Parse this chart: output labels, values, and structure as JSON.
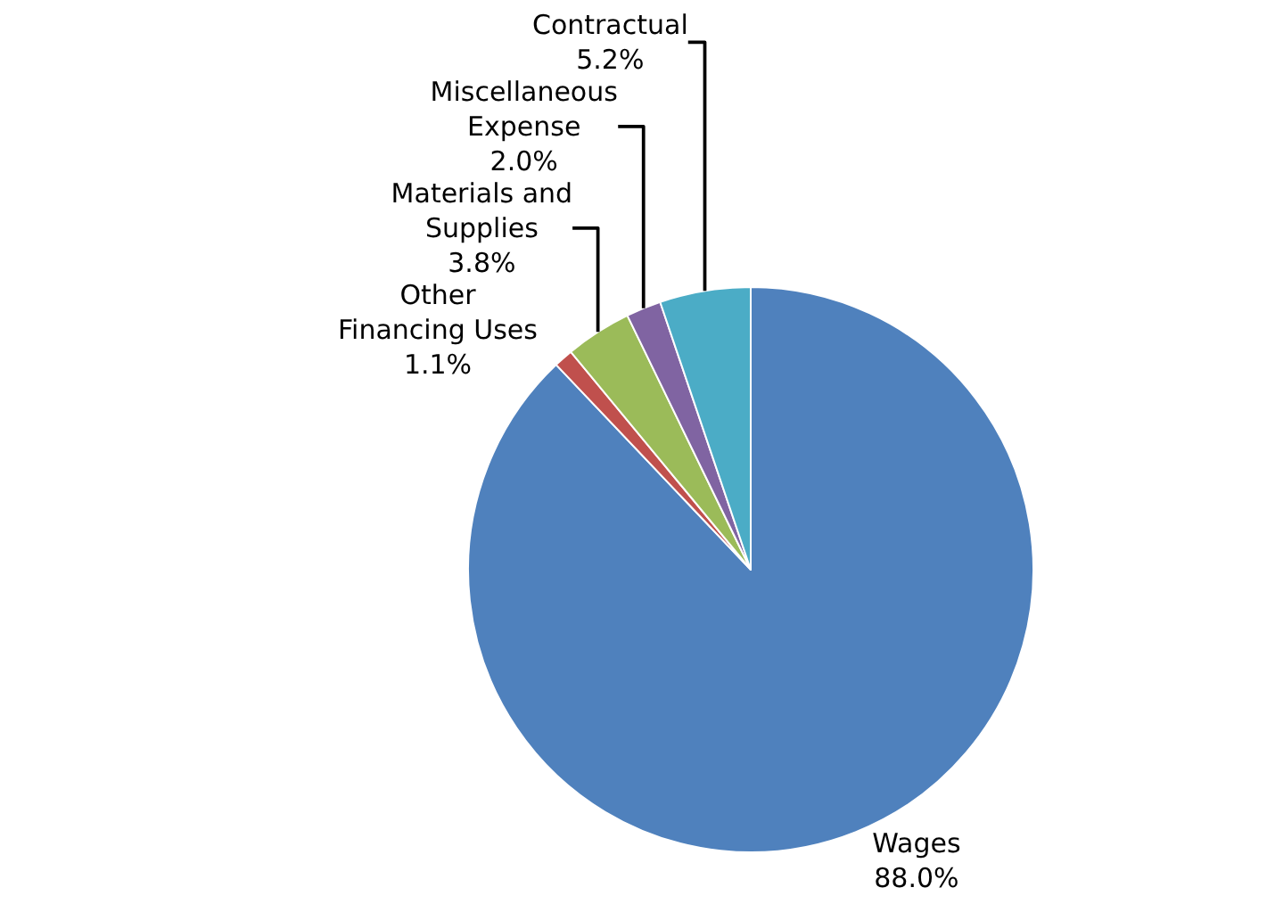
{
  "chart_data": {
    "type": "pie",
    "categories": [
      "Wages",
      "Other Financing Uses",
      "Materials and Supplies",
      "Miscellaneous Expense",
      "Contractual"
    ],
    "values": [
      88.0,
      1.1,
      3.8,
      2.0,
      5.2
    ],
    "colors": [
      "#4f81bd",
      "#c0504d",
      "#9bbb59",
      "#8064a2",
      "#4bacc6"
    ],
    "value_labels": [
      "88.0%",
      "1.1%",
      "3.8%",
      "2.0%",
      "5.2%"
    ],
    "legend": false
  }
}
